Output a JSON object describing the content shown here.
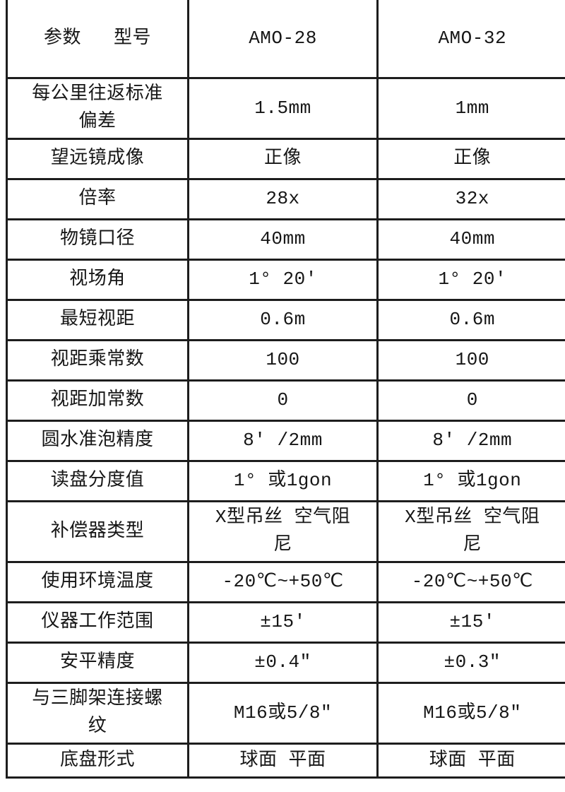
{
  "table": {
    "header": {
      "param_label": "参数",
      "model_label": "型号",
      "columns": [
        "AMO-28",
        "AMO-32"
      ]
    },
    "rows": [
      {
        "name": "每公里往返标准偏差",
        "amo28": "1.5mm",
        "amo32": "1mm"
      },
      {
        "name": "望远镜成像",
        "amo28": "正像",
        "amo32": "正像"
      },
      {
        "name": "倍率",
        "amo28": "28x",
        "amo32": "32x"
      },
      {
        "name": "物镜口径",
        "amo28": "40mm",
        "amo32": "40mm"
      },
      {
        "name": "视场角",
        "amo28": "1° 20′",
        "amo32": "1° 20′"
      },
      {
        "name": "最短视距",
        "amo28": "0.6m",
        "amo32": "0.6m"
      },
      {
        "name": "视距乘常数",
        "amo28": "100",
        "amo32": "100"
      },
      {
        "name": "视距加常数",
        "amo28": "0",
        "amo32": "0"
      },
      {
        "name": "圆水准泡精度",
        "amo28": "8′ /2mm",
        "amo32": "8′ /2mm"
      },
      {
        "name": "读盘分度值",
        "amo28": "1° 或1gon",
        "amo32": "1° 或1gon"
      },
      {
        "name": "补偿器类型",
        "amo28": "X型吊丝 空气阻尼",
        "amo32": "X型吊丝 空气阻尼"
      },
      {
        "name": "使用环境温度",
        "amo28": "-20℃~+50℃",
        "amo32": "-20℃~+50℃"
      },
      {
        "name": "仪器工作范围",
        "amo28": "±15′",
        "amo32": "±15′"
      },
      {
        "name": "安平精度",
        "amo28": "±0.4″",
        "amo32": "±0.3″"
      },
      {
        "name": "与三脚架连接螺纹",
        "amo28": "M16或5/8″",
        "amo32": "M16或5/8″"
      },
      {
        "name": "底盘形式",
        "amo28": "球面 平面",
        "amo32": "球面 平面"
      }
    ],
    "colors": {
      "border": "#1d1d1d",
      "text": "#161616",
      "background": "#ffffff"
    }
  }
}
